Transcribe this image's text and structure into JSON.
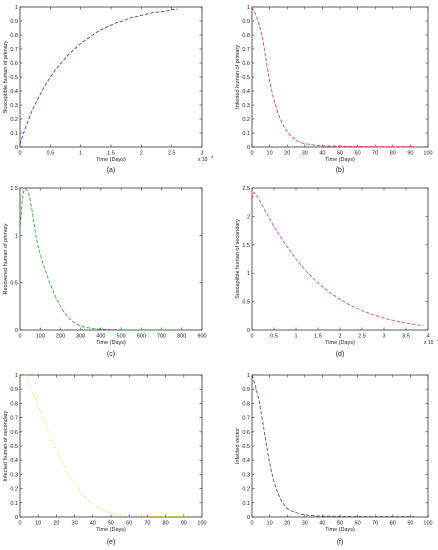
{
  "chart_data": [
    {
      "type": "line",
      "panel_label": "(a)",
      "ylabel": "Susceptible human of primary",
      "xlabel": "Time (Days)",
      "x_exponent_label": "x 10",
      "x_exponent_power": "4",
      "xlim": [
        0,
        3
      ],
      "ylim": [
        0,
        1
      ],
      "xticks": [
        0,
        0.5,
        1,
        1.5,
        2,
        2.5,
        3
      ],
      "xtick_labels": [
        "0",
        "0.5",
        "1",
        "1.5",
        "2",
        "2.5",
        "3"
      ],
      "yticks": [
        0,
        0.1,
        0.2,
        0.3,
        0.4,
        0.5,
        0.6,
        0.7,
        0.8,
        0.9,
        1
      ],
      "ytick_labels": [
        "0",
        "0.1",
        "0.2",
        "0.3",
        "0.4",
        "0.5",
        "0.6",
        "0.7",
        "0.8",
        "0.9",
        "1"
      ],
      "series": [
        {
          "color": "#3d4bb0",
          "style": "dashed",
          "x": [
            0,
            0.05,
            0.1,
            0.2,
            0.3,
            0.4,
            0.5,
            0.6,
            0.7,
            0.8,
            0.9,
            1.0,
            1.1,
            1.2,
            1.3,
            1.4,
            1.5,
            1.6,
            1.7,
            1.8,
            1.9,
            2.0,
            2.1,
            2.2,
            2.3,
            2.4,
            2.5,
            2.6
          ],
          "y": [
            0.02,
            0.09,
            0.15,
            0.26,
            0.35,
            0.43,
            0.5,
            0.56,
            0.61,
            0.66,
            0.7,
            0.74,
            0.77,
            0.8,
            0.83,
            0.85,
            0.87,
            0.89,
            0.9,
            0.92,
            0.93,
            0.94,
            0.95,
            0.96,
            0.965,
            0.97,
            0.98,
            0.985
          ]
        }
      ]
    },
    {
      "type": "line",
      "panel_label": "(b)",
      "ylabel": "Infected human of primary",
      "xlabel": "Time (Days)",
      "xlim": [
        0,
        100
      ],
      "ylim": [
        0,
        1
      ],
      "xticks": [
        0,
        10,
        20,
        30,
        40,
        50,
        60,
        70,
        80,
        90,
        100
      ],
      "xtick_labels": [
        "0",
        "10",
        "20",
        "30",
        "40",
        "50",
        "60",
        "70",
        "80",
        "90",
        "100"
      ],
      "yticks": [
        0,
        0.1,
        0.2,
        0.3,
        0.4,
        0.5,
        0.6,
        0.7,
        0.8,
        0.9,
        1
      ],
      "ytick_labels": [
        "0",
        "0.1",
        "0.2",
        "0.3",
        "0.4",
        "0.5",
        "0.6",
        "0.7",
        "0.8",
        "0.9",
        "1"
      ],
      "series": [
        {
          "color": "#d04a6a",
          "style": "dashed",
          "x": [
            0,
            2,
            4,
            6,
            8,
            10,
            12,
            14,
            16,
            18,
            20,
            22,
            25,
            28,
            32,
            36,
            40,
            50,
            60,
            70,
            80,
            90,
            92
          ],
          "y": [
            1.0,
            0.95,
            0.88,
            0.78,
            0.62,
            0.47,
            0.36,
            0.27,
            0.2,
            0.15,
            0.11,
            0.08,
            0.05,
            0.03,
            0.02,
            0.012,
            0.008,
            0.005,
            0.004,
            0.003,
            0.003,
            0.003,
            0.003
          ]
        }
      ]
    },
    {
      "type": "line",
      "panel_label": "(c)",
      "ylabel": "Recovered human of primary",
      "xlabel": "Time (Days)",
      "xlim": [
        0,
        900
      ],
      "ylim": [
        0,
        1.5
      ],
      "xticks": [
        0,
        100,
        200,
        300,
        400,
        500,
        600,
        700,
        800,
        900
      ],
      "xtick_labels": [
        "0",
        "100",
        "200",
        "300",
        "400",
        "500",
        "600",
        "700",
        "800",
        "900"
      ],
      "yticks": [
        0,
        0.5,
        1,
        1.5
      ],
      "ytick_labels": [
        "0",
        "0.5",
        "1",
        "1.5"
      ],
      "series": [
        {
          "color": "#3aa83a",
          "style": "dashed",
          "x": [
            0,
            10,
            20,
            30,
            40,
            50,
            60,
            70,
            80,
            90,
            100,
            120,
            140,
            160,
            180,
            200,
            220,
            250,
            280,
            320,
            360,
            400,
            450,
            500,
            600,
            700,
            800
          ],
          "y": [
            1.05,
            1.35,
            1.48,
            1.49,
            1.46,
            1.38,
            1.26,
            1.12,
            0.98,
            0.88,
            0.8,
            0.66,
            0.54,
            0.43,
            0.33,
            0.25,
            0.18,
            0.11,
            0.06,
            0.03,
            0.015,
            0.01,
            0.005,
            0.003,
            0.002,
            0.002,
            0.002
          ]
        }
      ]
    },
    {
      "type": "line",
      "panel_label": "(d)",
      "ylabel": "Susceptible human of secondary",
      "xlabel": "Time (Days)",
      "x_exponent_label": "x 10",
      "x_exponent_power": "4",
      "xlim": [
        0,
        4
      ],
      "ylim": [
        0,
        2.5
      ],
      "xticks": [
        0,
        0.5,
        1,
        1.5,
        2,
        2.5,
        3,
        3.5,
        4
      ],
      "xtick_labels": [
        "0",
        "0.5",
        "1",
        "1.5",
        "2",
        "2.5",
        "3",
        "3.5",
        "4"
      ],
      "yticks": [
        0,
        0.5,
        1,
        1.5,
        2,
        2.5
      ],
      "ytick_labels": [
        "0",
        "0.5",
        "1",
        "1.5",
        "2",
        "2.5"
      ],
      "series": [
        {
          "color": "#c050c0",
          "style": "dashed",
          "x": [
            0,
            0.05,
            0.1,
            0.2,
            0.3,
            0.5,
            0.75,
            1.0,
            1.25,
            1.5,
            1.75,
            2.0,
            2.25,
            2.5,
            2.75,
            3.0,
            3.25,
            3.5,
            3.75,
            3.9
          ],
          "y": [
            2.3,
            2.42,
            2.38,
            2.24,
            2.1,
            1.82,
            1.52,
            1.25,
            1.02,
            0.83,
            0.67,
            0.54,
            0.43,
            0.34,
            0.27,
            0.21,
            0.16,
            0.12,
            0.09,
            0.08
          ]
        }
      ]
    },
    {
      "type": "line",
      "panel_label": "(e)",
      "ylabel": "Infected human of secondary",
      "xlabel": "Time (Days)",
      "xlim": [
        0,
        100
      ],
      "ylim": [
        0,
        1
      ],
      "xticks": [
        0,
        10,
        20,
        30,
        40,
        50,
        60,
        70,
        80,
        90,
        100
      ],
      "xtick_labels": [
        "0",
        "10",
        "20",
        "30",
        "40",
        "50",
        "60",
        "70",
        "80",
        "90",
        "100"
      ],
      "yticks": [
        0,
        0.1,
        0.2,
        0.3,
        0.4,
        0.5,
        0.6,
        0.7,
        0.8,
        0.9,
        1
      ],
      "ytick_labels": [
        "0",
        "0.1",
        "0.2",
        "0.3",
        "0.4",
        "0.5",
        "0.6",
        "0.7",
        "0.8",
        "0.9",
        "1"
      ],
      "series": [
        {
          "color": "#d8d840",
          "style": "dotted",
          "x": [
            3,
            5,
            10,
            15,
            20,
            25,
            30,
            35,
            40,
            45,
            50,
            55,
            60,
            70,
            80,
            90,
            92
          ],
          "y": [
            1.0,
            0.93,
            0.78,
            0.62,
            0.47,
            0.34,
            0.23,
            0.15,
            0.09,
            0.05,
            0.03,
            0.015,
            0.01,
            0.005,
            0.003,
            0.003,
            0.003
          ]
        }
      ]
    },
    {
      "type": "line",
      "panel_label": "(f)",
      "ylabel": "Infected vector",
      "xlabel": "Time (Days)",
      "xlim": [
        0,
        100
      ],
      "ylim": [
        0,
        1
      ],
      "xticks": [
        0,
        10,
        20,
        30,
        40,
        50,
        60,
        70,
        80,
        90,
        100
      ],
      "xtick_labels": [
        "0",
        "10",
        "20",
        "30",
        "40",
        "50",
        "60",
        "70",
        "80",
        "90",
        "100"
      ],
      "yticks": [
        0,
        0.1,
        0.2,
        0.3,
        0.4,
        0.5,
        0.6,
        0.7,
        0.8,
        0.9,
        1
      ],
      "ytick_labels": [
        "0",
        "0.1",
        "0.2",
        "0.3",
        "0.4",
        "0.5",
        "0.6",
        "0.7",
        "0.8",
        "0.9",
        "1"
      ],
      "series": [
        {
          "color": "#555566",
          "style": "dashed",
          "x": [
            0,
            2,
            4,
            6,
            8,
            10,
            12,
            14,
            16,
            18,
            20,
            22,
            25,
            28,
            32,
            36,
            40,
            50,
            60,
            70,
            80,
            90,
            92
          ],
          "y": [
            1.0,
            0.92,
            0.82,
            0.68,
            0.52,
            0.38,
            0.27,
            0.19,
            0.13,
            0.09,
            0.06,
            0.045,
            0.03,
            0.02,
            0.012,
            0.008,
            0.006,
            0.004,
            0.003,
            0.003,
            0.003,
            0.003,
            0.003
          ]
        }
      ]
    }
  ]
}
